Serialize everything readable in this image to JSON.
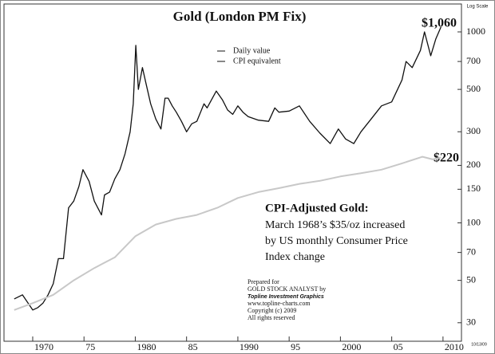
{
  "chart_data": {
    "type": "line",
    "title": "Gold (London PM Fix)",
    "y_axis_note": "Log Scale",
    "log_scale": true,
    "grid": false,
    "xlim": [
      1967.2,
      2011.8
    ],
    "ylim": [
      24,
      1400
    ],
    "xticks": [
      1970,
      {
        "value": 1975,
        "label": "75"
      },
      1980,
      {
        "value": 1985,
        "label": "85"
      },
      1990,
      {
        "value": 1995,
        "label": "95"
      },
      2000,
      {
        "value": 2005,
        "label": "05"
      },
      2010
    ],
    "yticks": [
      30,
      50,
      70,
      100,
      150,
      200,
      300,
      500,
      700,
      1000
    ],
    "series": [
      {
        "name": "Daily value",
        "color": "#111111",
        "x": [
          1968.2,
          1969,
          1970,
          1970.5,
          1971,
          1971.5,
          1972,
          1972.5,
          1973,
          1973.5,
          1974,
          1974.5,
          1974.9,
          1975.5,
          1976,
          1976.7,
          1977,
          1977.5,
          1978,
          1978.5,
          1979,
          1979.5,
          1979.8,
          1980.05,
          1980.3,
          1980.7,
          1981,
          1981.5,
          1982,
          1982.5,
          1982.9,
          1983.2,
          1983.6,
          1984,
          1984.5,
          1985,
          1985.5,
          1986,
          1986.7,
          1987,
          1987.9,
          1988.5,
          1989,
          1989.5,
          1990,
          1990.5,
          1991,
          1992,
          1993,
          1993.6,
          1994,
          1995,
          1996,
          1997,
          1998,
          1999,
          1999.8,
          2000.5,
          2001.3,
          2002,
          2003,
          2004,
          2005,
          2006,
          2006.4,
          2007,
          2007.8,
          2008.2,
          2008.8,
          2009.3,
          2009.8
        ],
        "values": [
          40,
          42,
          35,
          36,
          38,
          42,
          48,
          65,
          65,
          120,
          130,
          155,
          190,
          165,
          130,
          110,
          140,
          145,
          170,
          190,
          230,
          300,
          420,
          850,
          500,
          650,
          550,
          420,
          350,
          310,
          450,
          450,
          410,
          380,
          340,
          300,
          330,
          340,
          420,
          400,
          490,
          440,
          390,
          370,
          410,
          380,
          360,
          345,
          340,
          400,
          380,
          385,
          410,
          340,
          295,
          260,
          310,
          275,
          260,
          300,
          350,
          410,
          430,
          560,
          700,
          650,
          800,
          1000,
          750,
          920,
          1060
        ]
      },
      {
        "name": "CPI equivalent",
        "color": "#c8c8c8",
        "x": [
          1968.2,
          1970,
          1972,
          1974,
          1976,
          1978,
          1980,
          1982,
          1984,
          1986,
          1988,
          1990,
          1992,
          1994,
          1996,
          1998,
          2000,
          2002,
          2004,
          2006,
          2008,
          2009,
          2009.8
        ],
        "values": [
          35,
          38,
          42,
          50,
          58,
          66,
          85,
          98,
          105,
          110,
          120,
          135,
          145,
          152,
          160,
          166,
          175,
          182,
          190,
          205,
          222,
          215,
          220
        ]
      }
    ],
    "annotations": [
      "$1,060",
      "$220"
    ],
    "note_title": "CPI-Adjusted Gold:",
    "note_lines": [
      "March 1968’s $35/oz increased",
      "by US monthly Consumer Price",
      "Index change"
    ],
    "credits": [
      "Prepared for",
      "GOLD STOCK ANALYST by",
      "Topline Investment Graphics",
      "www.topline-charts.com",
      "Copyright (c) 2009",
      "All rights reserved"
    ],
    "date_stamp": "10/13/09"
  }
}
